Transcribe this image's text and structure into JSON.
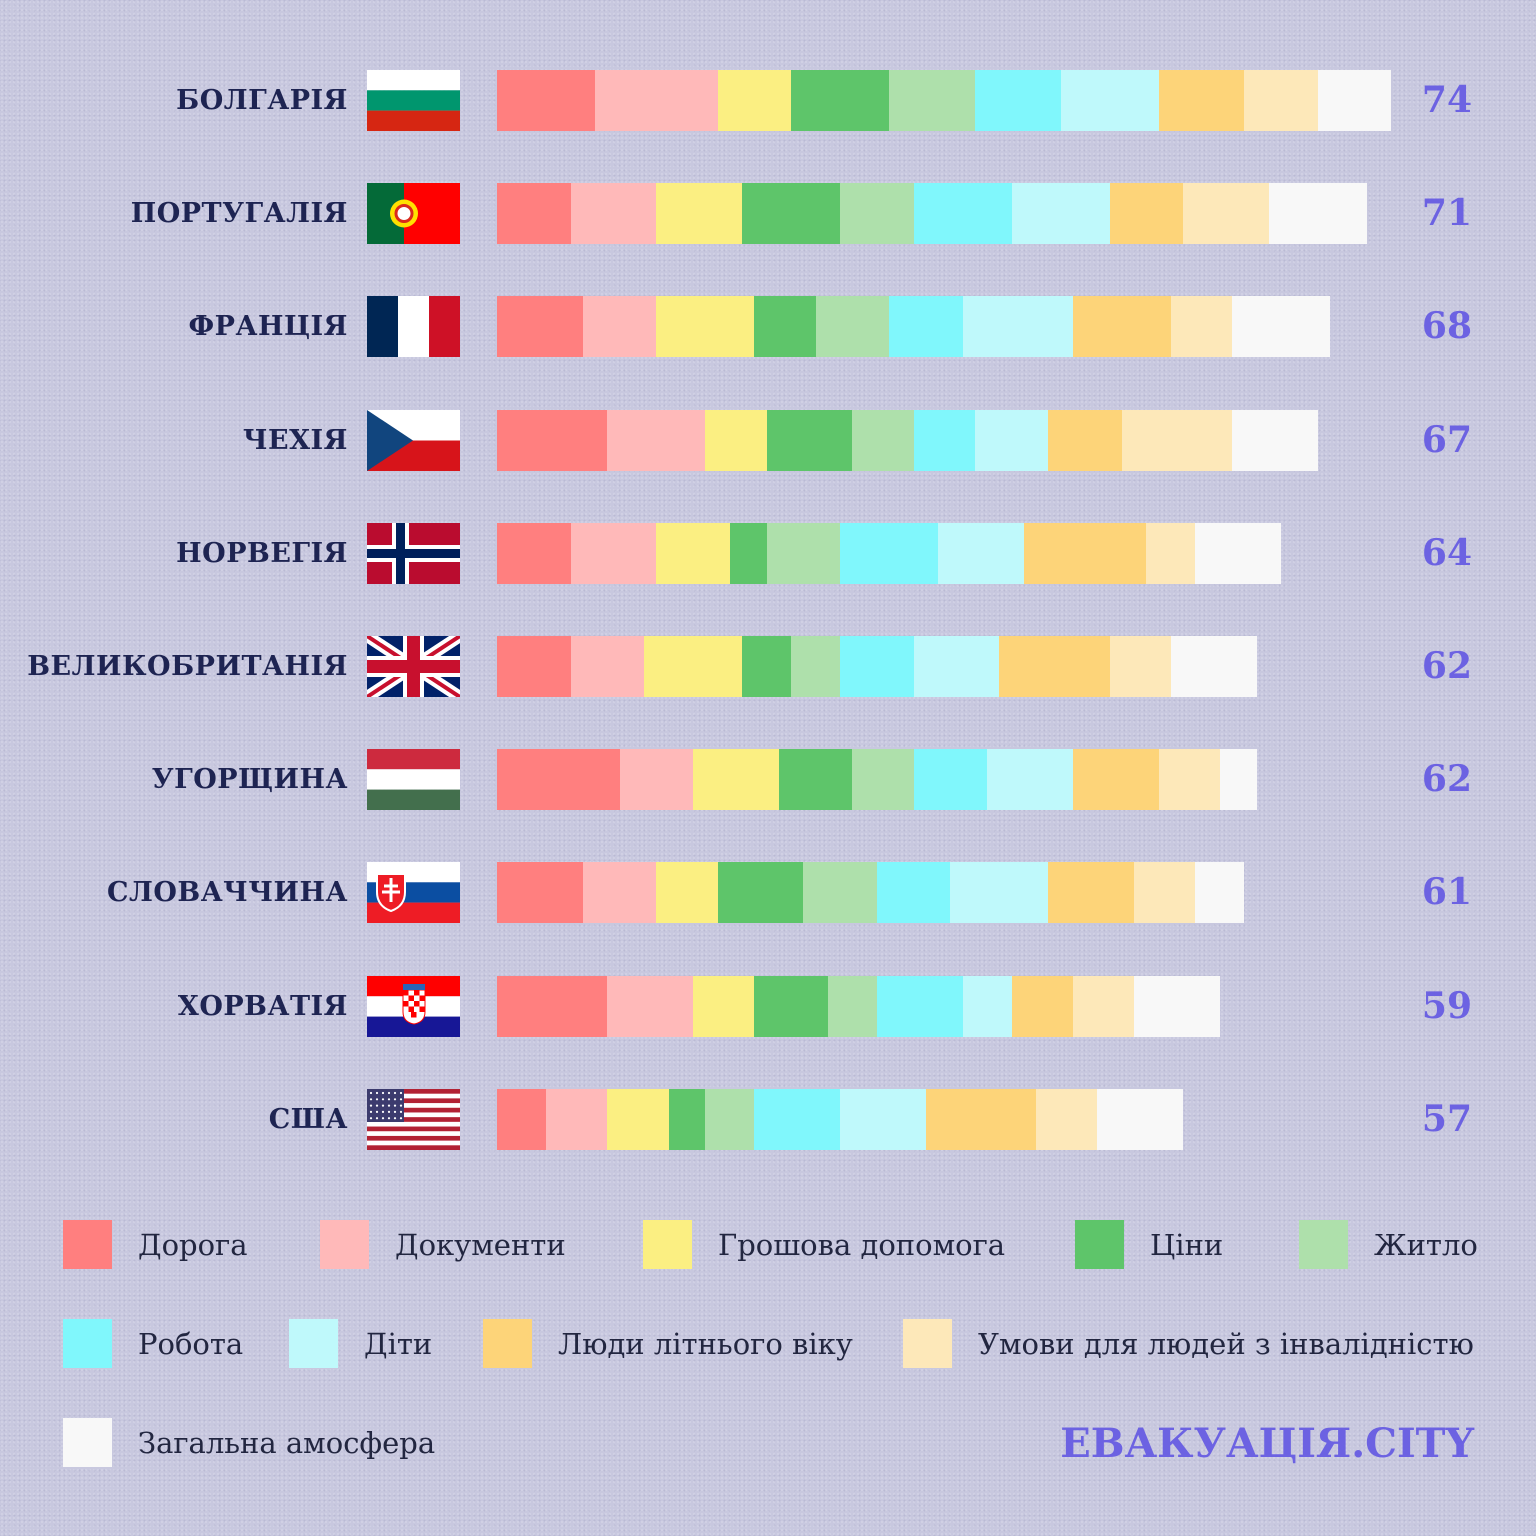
{
  "chart_data": {
    "type": "bar",
    "orientation": "horizontal",
    "stacked": true,
    "categories": [
      "БОЛГАРІЯ",
      "ПОРТУГАЛІЯ",
      "ФРАНЦІЯ",
      "ЧЕХІЯ",
      "НОРВЕГІЯ",
      "ВЕЛИКОБРИТАНІЯ",
      "УГОРЩИНА",
      "СЛОВАЧЧИНА",
      "ХОРВАТІЯ",
      "США"
    ],
    "totals": [
      "74",
      "71",
      "68",
      "67",
      "64",
      "62",
      "62",
      "61",
      "59",
      "57"
    ],
    "series": [
      {
        "name": "Дорога",
        "color": "#ff7f7f",
        "values": [
          8,
          6,
          7,
          9,
          6,
          6,
          10,
          7,
          9,
          4
        ]
      },
      {
        "name": "Документи",
        "color": "#ffb9b9",
        "values": [
          10,
          7,
          6,
          8,
          7,
          6,
          6,
          6,
          7,
          5
        ]
      },
      {
        "name": "Грошова допомога",
        "color": "#fbef82",
        "values": [
          6,
          7,
          8,
          5,
          6,
          8,
          7,
          5,
          5,
          5
        ]
      },
      {
        "name": "Ціни",
        "color": "#5ec56a",
        "values": [
          8,
          8,
          5,
          7,
          3,
          4,
          6,
          7,
          6,
          3
        ]
      },
      {
        "name": "Житло",
        "color": "#aee0ab",
        "values": [
          7,
          6,
          6,
          5,
          6,
          4,
          5,
          6,
          4,
          4
        ]
      },
      {
        "name": "Робота",
        "color": "#80f7fc",
        "values": [
          7,
          8,
          6,
          5,
          8,
          6,
          6,
          6,
          7,
          7
        ]
      },
      {
        "name": "Діти",
        "color": "#bff9fb",
        "values": [
          8,
          8,
          9,
          6,
          7,
          7,
          7,
          8,
          4,
          7
        ]
      },
      {
        "name": "Люди літнього віку",
        "color": "#fdd479",
        "values": [
          7,
          6,
          8,
          6,
          10,
          9,
          7,
          7,
          5,
          9
        ]
      },
      {
        "name": "Умови для людей з інвалідністю",
        "color": "#fde8b9",
        "values": [
          6,
          7,
          5,
          9,
          4,
          5,
          5,
          5,
          5,
          5
        ]
      },
      {
        "name": "Загальна амосфера",
        "color": "#f8f8f8",
        "values": [
          6,
          8,
          8,
          7,
          7,
          7,
          3,
          4,
          7,
          7
        ]
      }
    ],
    "legend_position": "bottom"
  },
  "flags": [
    "bulgaria",
    "portugal",
    "france",
    "czechia",
    "norway",
    "uk",
    "hungary",
    "slovakia",
    "croatia",
    "usa"
  ],
  "brand": "ЕВАКУАЦІЯ.CITY"
}
